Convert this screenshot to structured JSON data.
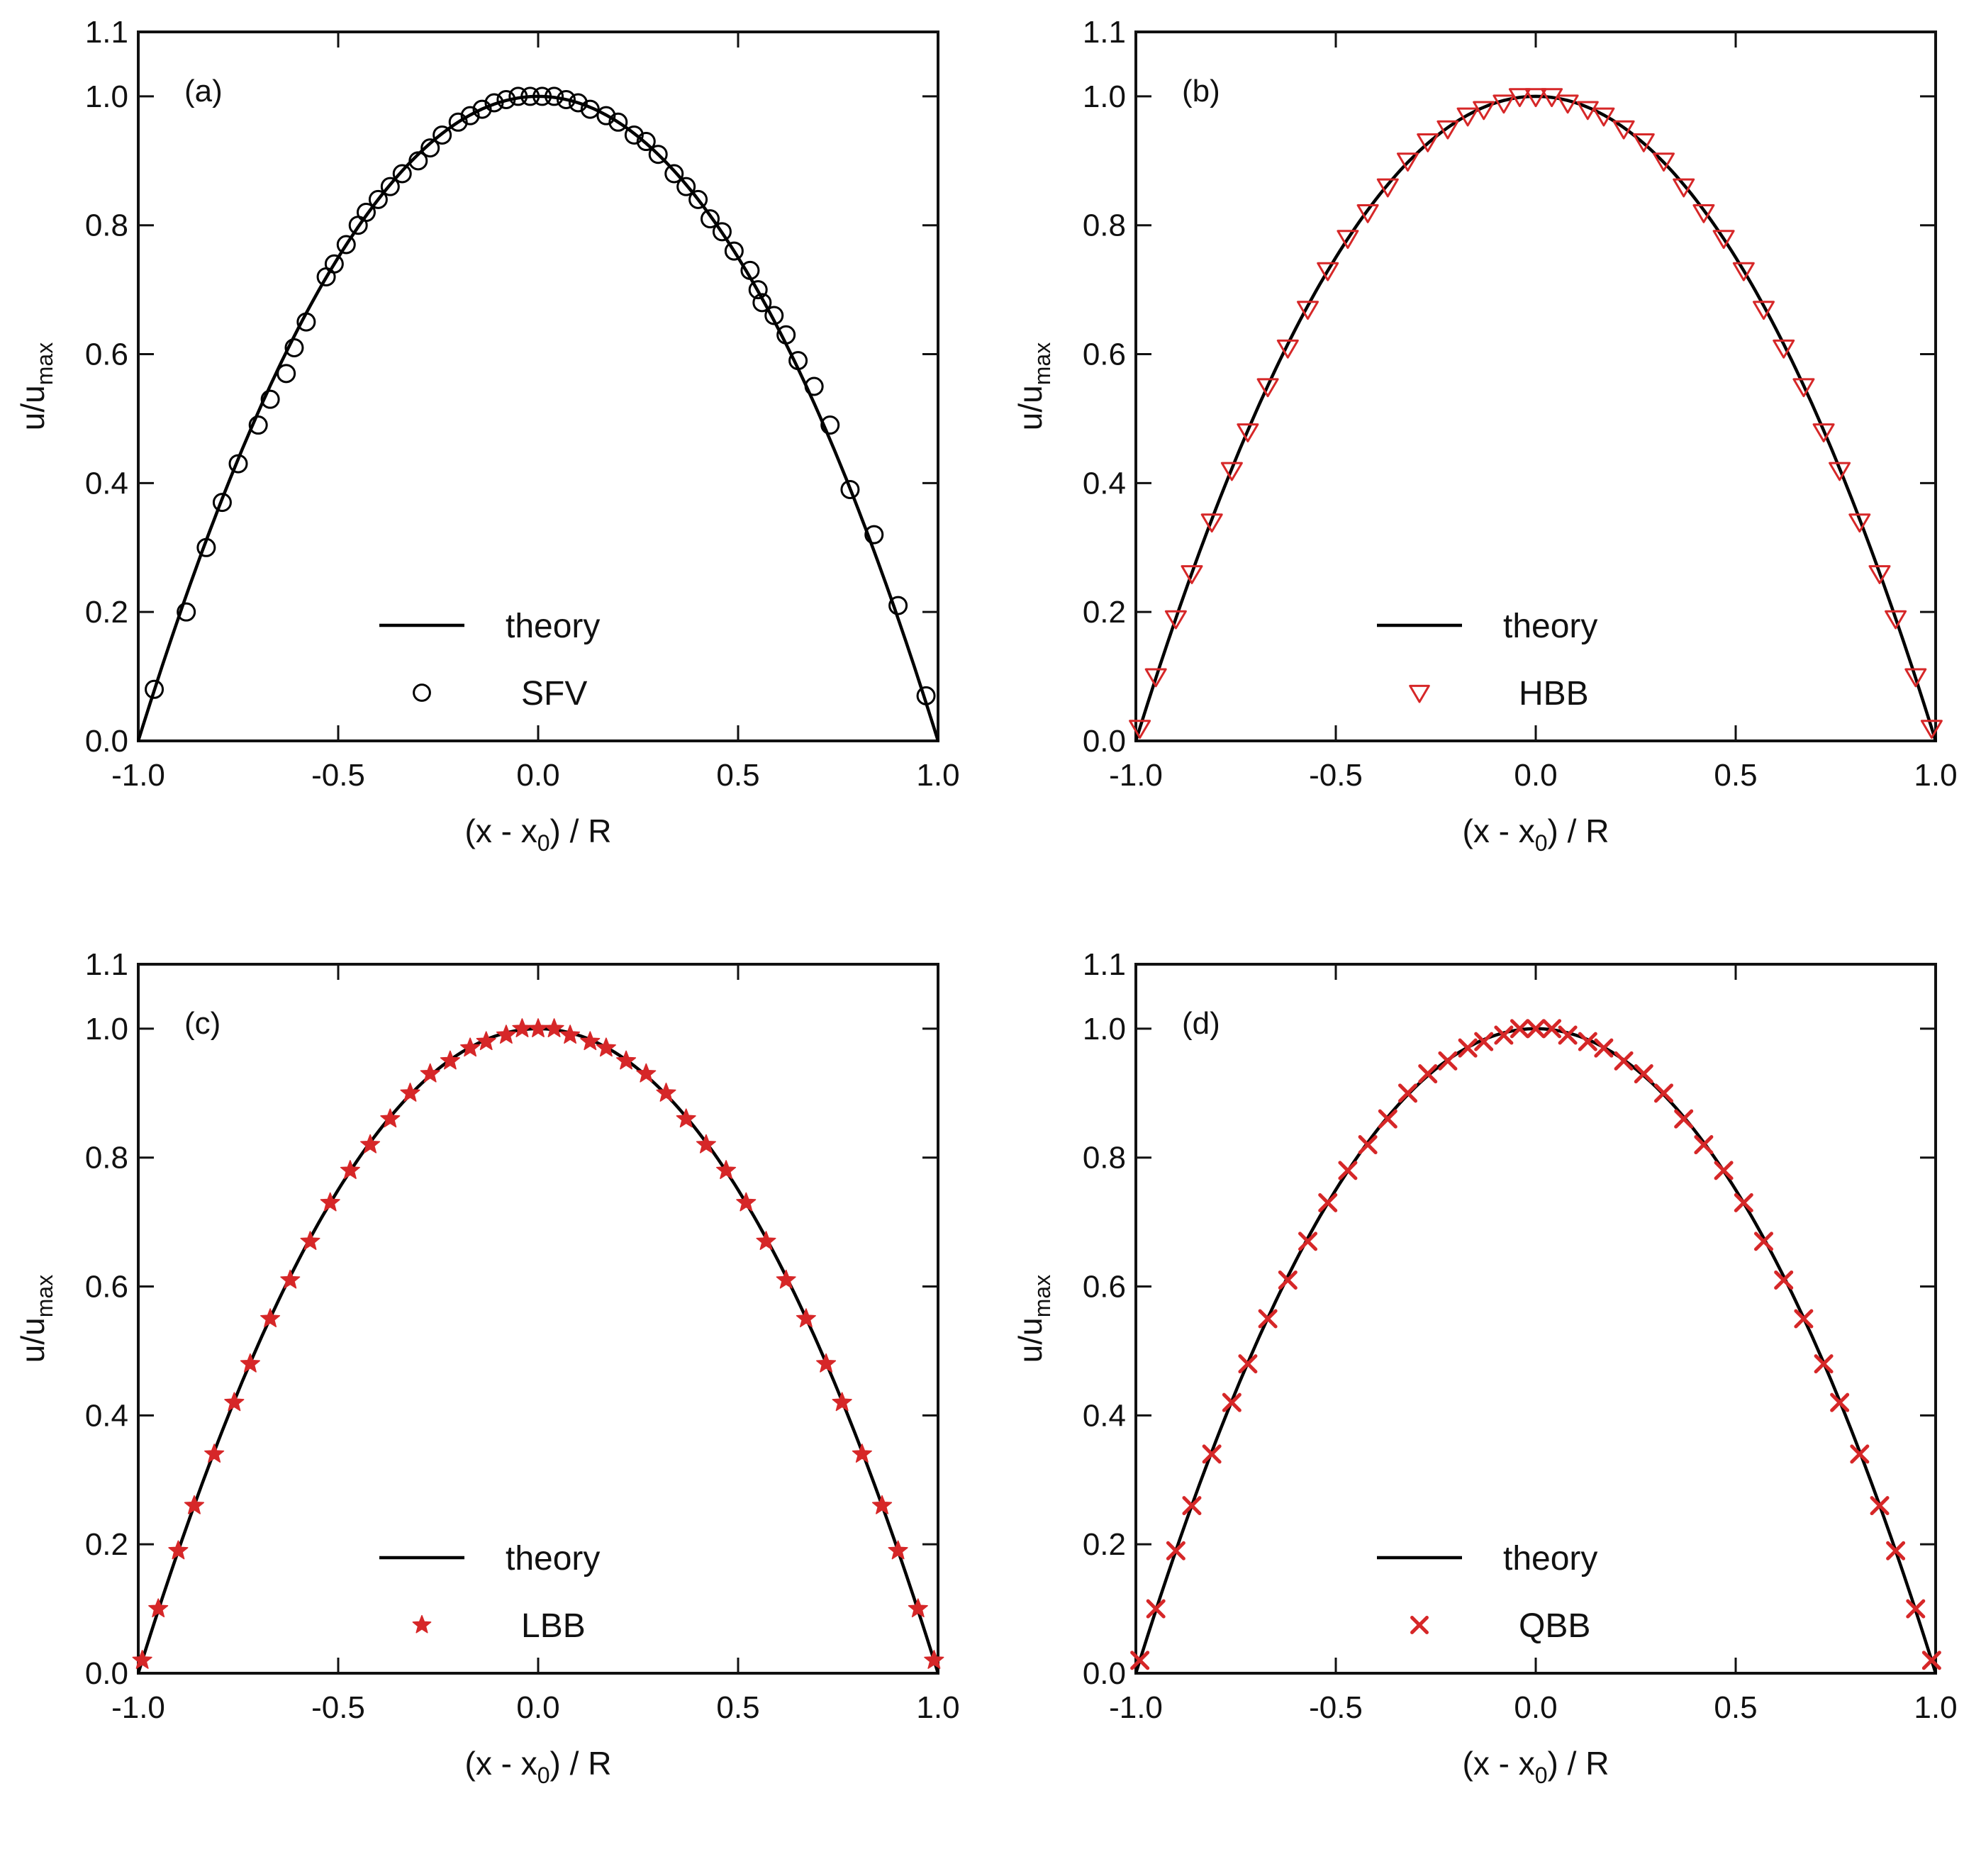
{
  "figure_labels": {
    "x_axis_main": "(x - x",
    "x_axis_sub": "0",
    "x_axis_tail": ") / R",
    "y_axis_main": "u/u",
    "y_axis_sub": "max"
  },
  "chart_data": [
    {
      "type": "scatter",
      "panel_label": "(a)",
      "xlabel": "(x - x0) / R",
      "ylabel": "u/umax",
      "xlim": [
        -1.0,
        1.0
      ],
      "ylim": [
        0.0,
        1.1
      ],
      "xticks": [
        "-1.0",
        "-0.5",
        "0.0",
        "0.5",
        "1.0"
      ],
      "yticks": [
        "0.0",
        "0.2",
        "0.4",
        "0.6",
        "0.8",
        "1.0",
        "1.1"
      ],
      "legend": {
        "position": "lower-center",
        "line_label": "theory",
        "marker_label": "SFV"
      },
      "series": [
        {
          "name": "theory",
          "kind": "line",
          "color": "#000000",
          "formula": "1 - x^2"
        },
        {
          "name": "SFV",
          "kind": "marker",
          "marker": "circle",
          "color": "#000000",
          "x": [
            -0.96,
            -0.88,
            -0.83,
            -0.79,
            -0.75,
            -0.7,
            -0.67,
            -0.63,
            -0.61,
            -0.58,
            -0.53,
            -0.51,
            -0.48,
            -0.45,
            -0.43,
            -0.4,
            -0.37,
            -0.34,
            -0.3,
            -0.27,
            -0.24,
            -0.2,
            -0.17,
            -0.14,
            -0.11,
            -0.08,
            -0.05,
            -0.02,
            0.01,
            0.04,
            0.07,
            0.1,
            0.13,
            0.17,
            0.2,
            0.24,
            0.27,
            0.3,
            0.34,
            0.37,
            0.4,
            0.43,
            0.46,
            0.49,
            0.53,
            0.55,
            0.56,
            0.59,
            0.62,
            0.65,
            0.69,
            0.73,
            0.78,
            0.84,
            0.9,
            0.97
          ],
          "y": [
            0.08,
            0.2,
            0.3,
            0.37,
            0.43,
            0.49,
            0.53,
            0.57,
            0.61,
            0.65,
            0.72,
            0.74,
            0.77,
            0.8,
            0.82,
            0.84,
            0.86,
            0.88,
            0.9,
            0.92,
            0.94,
            0.96,
            0.97,
            0.98,
            0.99,
            0.995,
            1.0,
            1.0,
            1.0,
            1.0,
            0.995,
            0.99,
            0.98,
            0.97,
            0.96,
            0.94,
            0.93,
            0.91,
            0.88,
            0.86,
            0.84,
            0.81,
            0.79,
            0.76,
            0.73,
            0.7,
            0.68,
            0.66,
            0.63,
            0.59,
            0.55,
            0.49,
            0.39,
            0.32,
            0.21,
            0.07
          ]
        }
      ]
    },
    {
      "type": "scatter",
      "panel_label": "(b)",
      "xlabel": "(x - x0) / R",
      "ylabel": "u/umax",
      "xlim": [
        -1.0,
        1.0
      ],
      "ylim": [
        0.0,
        1.1
      ],
      "xticks": [
        "-1.0",
        "-0.5",
        "0.0",
        "0.5",
        "1.0"
      ],
      "yticks": [
        "0.0",
        "0.2",
        "0.4",
        "0.6",
        "0.8",
        "1.0",
        "1.1"
      ],
      "legend": {
        "position": "lower-center",
        "line_label": "theory",
        "marker_label": "HBB"
      },
      "series": [
        {
          "name": "theory",
          "kind": "line",
          "color": "#000000",
          "formula": "1 - x^2"
        },
        {
          "name": "HBB",
          "kind": "marker",
          "marker": "triangle-down",
          "color": "#d62728",
          "x": [
            -0.99,
            -0.95,
            -0.9,
            -0.86,
            -0.81,
            -0.76,
            -0.72,
            -0.67,
            -0.62,
            -0.57,
            -0.52,
            -0.47,
            -0.42,
            -0.37,
            -0.32,
            -0.27,
            -0.22,
            -0.17,
            -0.13,
            -0.08,
            -0.04,
            0.0,
            0.04,
            0.08,
            0.13,
            0.17,
            0.22,
            0.27,
            0.32,
            0.37,
            0.42,
            0.47,
            0.52,
            0.57,
            0.62,
            0.67,
            0.72,
            0.76,
            0.81,
            0.86,
            0.9,
            0.95,
            0.99
          ],
          "y": [
            0.02,
            0.1,
            0.19,
            0.26,
            0.34,
            0.42,
            0.48,
            0.55,
            0.61,
            0.67,
            0.73,
            0.78,
            0.82,
            0.86,
            0.9,
            0.93,
            0.95,
            0.97,
            0.98,
            0.99,
            1.0,
            1.0,
            1.0,
            0.99,
            0.98,
            0.97,
            0.95,
            0.93,
            0.9,
            0.86,
            0.82,
            0.78,
            0.73,
            0.67,
            0.61,
            0.55,
            0.48,
            0.42,
            0.34,
            0.26,
            0.19,
            0.1,
            0.02
          ]
        }
      ]
    },
    {
      "type": "scatter",
      "panel_label": "(c)",
      "xlabel": "(x - x0) / R",
      "ylabel": "u/umax",
      "xlim": [
        -1.0,
        1.0
      ],
      "ylim": [
        0.0,
        1.1
      ],
      "xticks": [
        "-1.0",
        "-0.5",
        "0.0",
        "0.5",
        "1.0"
      ],
      "yticks": [
        "0.0",
        "0.2",
        "0.4",
        "0.6",
        "0.8",
        "1.0",
        "1.1"
      ],
      "legend": {
        "position": "lower-center",
        "line_label": "theory",
        "marker_label": "LBB"
      },
      "series": [
        {
          "name": "theory",
          "kind": "line",
          "color": "#000000",
          "formula": "1 - x^2"
        },
        {
          "name": "LBB",
          "kind": "marker",
          "marker": "star",
          "color": "#d62728",
          "x": [
            -0.99,
            -0.95,
            -0.9,
            -0.86,
            -0.81,
            -0.76,
            -0.72,
            -0.67,
            -0.62,
            -0.57,
            -0.52,
            -0.47,
            -0.42,
            -0.37,
            -0.32,
            -0.27,
            -0.22,
            -0.17,
            -0.13,
            -0.08,
            -0.04,
            0.0,
            0.04,
            0.08,
            0.13,
            0.17,
            0.22,
            0.27,
            0.32,
            0.37,
            0.42,
            0.47,
            0.52,
            0.57,
            0.62,
            0.67,
            0.72,
            0.76,
            0.81,
            0.86,
            0.9,
            0.95,
            0.99
          ],
          "y": [
            0.02,
            0.1,
            0.19,
            0.26,
            0.34,
            0.42,
            0.48,
            0.55,
            0.61,
            0.67,
            0.73,
            0.78,
            0.82,
            0.86,
            0.9,
            0.93,
            0.95,
            0.97,
            0.98,
            0.99,
            1.0,
            1.0,
            1.0,
            0.99,
            0.98,
            0.97,
            0.95,
            0.93,
            0.9,
            0.86,
            0.82,
            0.78,
            0.73,
            0.67,
            0.61,
            0.55,
            0.48,
            0.42,
            0.34,
            0.26,
            0.19,
            0.1,
            0.02
          ]
        }
      ]
    },
    {
      "type": "scatter",
      "panel_label": "(d)",
      "xlabel": "(x - x0) / R",
      "ylabel": "u/umax",
      "xlim": [
        -1.0,
        1.0
      ],
      "ylim": [
        0.0,
        1.1
      ],
      "xticks": [
        "-1.0",
        "-0.5",
        "0.0",
        "0.5",
        "1.0"
      ],
      "yticks": [
        "0.0",
        "0.2",
        "0.4",
        "0.6",
        "0.8",
        "1.0",
        "1.1"
      ],
      "legend": {
        "position": "lower-center",
        "line_label": "theory",
        "marker_label": "QBB"
      },
      "series": [
        {
          "name": "theory",
          "kind": "line",
          "color": "#000000",
          "formula": "1 - x^2"
        },
        {
          "name": "QBB",
          "kind": "marker",
          "marker": "x",
          "color": "#d62728",
          "x": [
            -0.99,
            -0.95,
            -0.9,
            -0.86,
            -0.81,
            -0.76,
            -0.72,
            -0.67,
            -0.62,
            -0.57,
            -0.52,
            -0.47,
            -0.42,
            -0.37,
            -0.32,
            -0.27,
            -0.22,
            -0.17,
            -0.13,
            -0.08,
            -0.04,
            0.0,
            0.04,
            0.08,
            0.13,
            0.17,
            0.22,
            0.27,
            0.32,
            0.37,
            0.42,
            0.47,
            0.52,
            0.57,
            0.62,
            0.67,
            0.72,
            0.76,
            0.81,
            0.86,
            0.9,
            0.95,
            0.99
          ],
          "y": [
            0.02,
            0.1,
            0.19,
            0.26,
            0.34,
            0.42,
            0.48,
            0.55,
            0.61,
            0.67,
            0.73,
            0.78,
            0.82,
            0.86,
            0.9,
            0.93,
            0.95,
            0.97,
            0.98,
            0.99,
            1.0,
            1.0,
            1.0,
            0.99,
            0.98,
            0.97,
            0.95,
            0.93,
            0.9,
            0.86,
            0.82,
            0.78,
            0.73,
            0.67,
            0.61,
            0.55,
            0.48,
            0.42,
            0.34,
            0.26,
            0.19,
            0.1,
            0.02
          ]
        }
      ]
    }
  ]
}
